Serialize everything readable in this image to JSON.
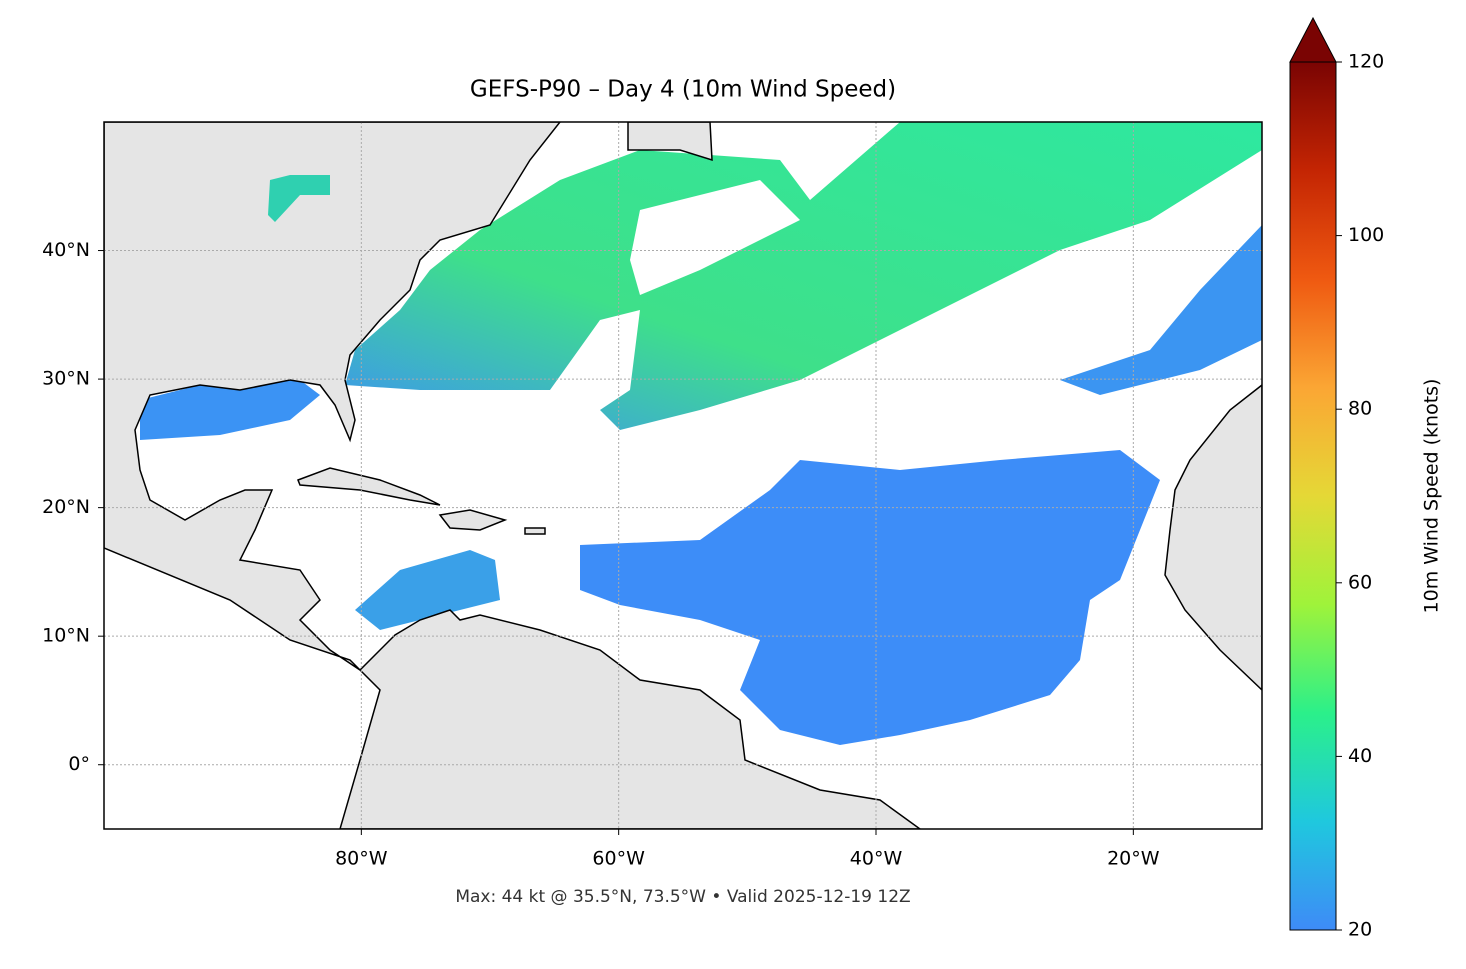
{
  "chart_data": {
    "type": "map",
    "title": "GEFS-P90 – Day 4 (10m Wind Speed)",
    "annotation": "Max: 44 kt @ 35.5°N, 73.5°W • Valid 2025-12-19 12Z",
    "xlim": [
      -100,
      -10
    ],
    "ylim": [
      -5,
      50
    ],
    "xticks": [
      {
        "value": -80,
        "label": "80°W"
      },
      {
        "value": -60,
        "label": "60°W"
      },
      {
        "value": -40,
        "label": "40°W"
      },
      {
        "value": -20,
        "label": "20°W"
      }
    ],
    "yticks": [
      {
        "value": 0,
        "label": "0°"
      },
      {
        "value": 10,
        "label": "10°N"
      },
      {
        "value": 20,
        "label": "20°N"
      },
      {
        "value": 30,
        "label": "30°N"
      },
      {
        "value": 40,
        "label": "40°N"
      }
    ],
    "grid": true,
    "colorbar": {
      "label": "10m Wind Speed (knots)",
      "lim": [
        20,
        120
      ],
      "ticks": [
        20,
        40,
        60,
        80,
        100,
        120
      ],
      "colors": [
        "#3e8bf7",
        "#1fc8de",
        "#2bf08a",
        "#9ff33a",
        "#e5d836",
        "#fba634",
        "#ef5911",
        "#c42503",
        "#7a0403"
      ],
      "extend": "max"
    }
  }
}
